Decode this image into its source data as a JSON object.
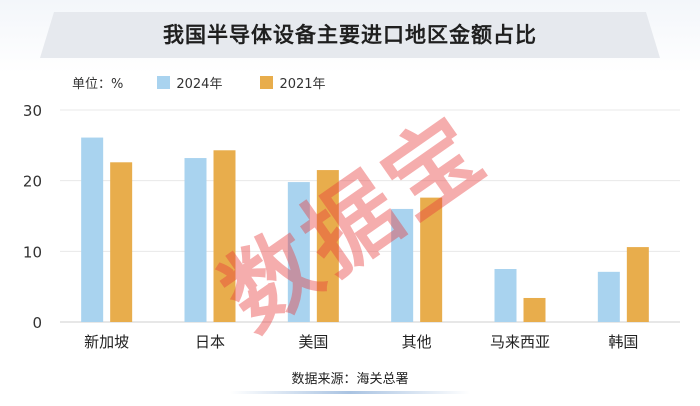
{
  "title": "我国半导体设备主要进口地区金额占比",
  "unit_label": "单位：%",
  "source": "数据来源：海关总署",
  "watermark": "数据宝",
  "colors": {
    "series_2024": "#a9d3ef",
    "series_2021": "#e8ad4c",
    "title_band": "#e6e9ee",
    "grid": "#e8e8e8",
    "watermark": "#e83c3c"
  },
  "chart_data": {
    "type": "bar",
    "title": "我国半导体设备主要进口地区金额占比",
    "ylabel": "单位：%",
    "categories": [
      "新加坡",
      "日本",
      "美国",
      "其他",
      "马来西亚",
      "韩国"
    ],
    "series": [
      {
        "name": "2024年",
        "values": [
          26.1,
          23.2,
          19.8,
          16.0,
          7.5,
          7.1
        ]
      },
      {
        "name": "2021年",
        "values": [
          22.6,
          24.3,
          21.5,
          17.6,
          3.4,
          10.6
        ]
      }
    ],
    "ylim": [
      0,
      30
    ],
    "yticks": [
      0,
      10,
      20,
      30
    ],
    "grid": true,
    "legend_position": "top-left"
  }
}
